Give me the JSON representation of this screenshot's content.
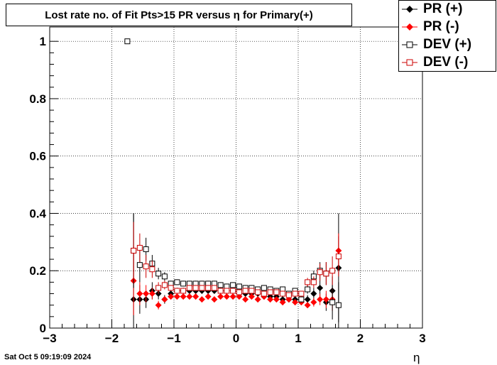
{
  "title": "Lost rate no. of Fit Pts>15 PR versus η for Primary(+)",
  "datestamp": "Sat Oct  5 09:19:09 2024",
  "chart_data": {
    "type": "scatter",
    "xlabel": "η",
    "ylabel": "",
    "xlim": [
      -3,
      3
    ],
    "ylim": [
      0,
      1.05
    ],
    "xticks": [
      "−3",
      "−2",
      "−1",
      "0",
      "1",
      "2",
      "3"
    ],
    "yticks": [
      "0",
      "0.2",
      "0.4",
      "0.6",
      "0.8",
      "1"
    ],
    "grid": true,
    "legend_position": "top-right",
    "series": [
      {
        "name": "PR (+)",
        "color": "#000000",
        "marker": "filled-diamond",
        "x": [
          -1.65,
          -1.55,
          -1.45,
          -1.35,
          -1.25,
          -1.15,
          -1.05,
          -0.95,
          -0.85,
          -0.75,
          -0.65,
          -0.55,
          -0.45,
          -0.35,
          -0.25,
          -0.15,
          -0.05,
          0.05,
          0.15,
          0.25,
          0.35,
          0.45,
          0.55,
          0.65,
          0.75,
          0.85,
          0.95,
          1.05,
          1.15,
          1.25,
          1.35,
          1.45,
          1.55,
          1.65
        ],
        "y": [
          0.1,
          0.1,
          0.1,
          0.13,
          0.12,
          0.1,
          0.12,
          0.13,
          0.13,
          0.13,
          0.13,
          0.13,
          0.13,
          0.13,
          0.13,
          0.13,
          0.13,
          0.12,
          0.12,
          0.12,
          0.12,
          0.11,
          0.11,
          0.11,
          0.1,
          0.1,
          0.1,
          0.1,
          0.1,
          0.12,
          0.14,
          0.09,
          0.13,
          0.21
        ],
        "err": [
          0.3,
          0.05,
          0.03,
          0.03,
          0.02,
          0.015,
          0.01,
          0.01,
          0.01,
          0.01,
          0.01,
          0.01,
          0.01,
          0.01,
          0.01,
          0.01,
          0.01,
          0.01,
          0.01,
          0.01,
          0.01,
          0.01,
          0.01,
          0.01,
          0.01,
          0.01,
          0.01,
          0.01,
          0.015,
          0.02,
          0.03,
          0.03,
          0.05,
          0.19
        ]
      },
      {
        "name": "PR (-)",
        "color": "#ff0000",
        "marker": "filled-diamond",
        "x": [
          -1.65,
          -1.55,
          -1.45,
          -1.35,
          -1.25,
          -1.15,
          -1.05,
          -0.95,
          -0.85,
          -0.75,
          -0.65,
          -0.55,
          -0.45,
          -0.35,
          -0.25,
          -0.15,
          -0.05,
          0.05,
          0.15,
          0.25,
          0.35,
          0.45,
          0.55,
          0.65,
          0.75,
          0.85,
          0.95,
          1.05,
          1.15,
          1.25,
          1.35,
          1.45,
          1.55,
          1.65
        ],
        "y": [
          0.165,
          0.12,
          0.12,
          0.12,
          0.08,
          0.1,
          0.11,
          0.11,
          0.11,
          0.11,
          0.11,
          0.1,
          0.11,
          0.1,
          0.11,
          0.11,
          0.11,
          0.11,
          0.1,
          0.11,
          0.1,
          0.11,
          0.1,
          0.1,
          0.09,
          0.1,
          0.09,
          0.09,
          0.08,
          0.09,
          0.1,
          0.1,
          0.1,
          0.27
        ],
        "err": [
          0.12,
          0.04,
          0.03,
          0.02,
          0.015,
          0.01,
          0.01,
          0.01,
          0.01,
          0.01,
          0.01,
          0.01,
          0.01,
          0.01,
          0.01,
          0.01,
          0.01,
          0.01,
          0.01,
          0.01,
          0.01,
          0.01,
          0.01,
          0.01,
          0.01,
          0.01,
          0.01,
          0.01,
          0.01,
          0.015,
          0.02,
          0.03,
          0.04,
          0.06
        ]
      },
      {
        "name": "DEV (+)",
        "color": "#000000",
        "marker": "open-square",
        "x": [
          -1.75,
          -1.65,
          -1.55,
          -1.45,
          -1.35,
          -1.25,
          -1.15,
          -1.05,
          -0.95,
          -0.85,
          -0.75,
          -0.65,
          -0.55,
          -0.45,
          -0.35,
          -0.25,
          -0.15,
          -0.05,
          0.05,
          0.15,
          0.25,
          0.35,
          0.45,
          0.55,
          0.65,
          0.75,
          0.85,
          0.95,
          1.05,
          1.15,
          1.25,
          1.35,
          1.45,
          1.55,
          1.65
        ],
        "y": [
          1.0,
          0.27,
          0.22,
          0.275,
          0.225,
          0.19,
          0.18,
          0.155,
          0.16,
          0.155,
          0.155,
          0.155,
          0.155,
          0.155,
          0.155,
          0.15,
          0.145,
          0.15,
          0.145,
          0.14,
          0.14,
          0.135,
          0.14,
          0.135,
          0.13,
          0.135,
          0.12,
          0.13,
          0.1,
          0.135,
          0.18,
          0.2,
          0.19,
          0.09,
          0.08
        ],
        "err": [
          0.0,
          0.13,
          0.06,
          0.04,
          0.03,
          0.02,
          0.015,
          0.01,
          0.01,
          0.01,
          0.01,
          0.01,
          0.01,
          0.01,
          0.01,
          0.01,
          0.01,
          0.01,
          0.01,
          0.01,
          0.01,
          0.01,
          0.01,
          0.01,
          0.01,
          0.01,
          0.01,
          0.01,
          0.01,
          0.015,
          0.02,
          0.03,
          0.04,
          0.06,
          0.08
        ]
      },
      {
        "name": "DEV (-)",
        "color": "#cc0000",
        "marker": "open-square",
        "x": [
          -1.65,
          -1.55,
          -1.45,
          -1.35,
          -1.25,
          -1.15,
          -1.05,
          -0.95,
          -0.85,
          -0.75,
          -0.65,
          -0.55,
          -0.45,
          -0.35,
          -0.25,
          -0.15,
          -0.05,
          0.05,
          0.15,
          0.25,
          0.35,
          0.45,
          0.55,
          0.65,
          0.75,
          0.85,
          0.95,
          1.05,
          1.15,
          1.25,
          1.35,
          1.45,
          1.55,
          1.65
        ],
        "y": [
          0.27,
          0.28,
          0.215,
          0.205,
          0.14,
          0.15,
          0.14,
          0.13,
          0.13,
          0.14,
          0.14,
          0.14,
          0.14,
          0.14,
          0.13,
          0.13,
          0.13,
          0.125,
          0.13,
          0.13,
          0.125,
          0.12,
          0.125,
          0.125,
          0.12,
          0.115,
          0.12,
          0.12,
          0.16,
          0.16,
          0.195,
          0.19,
          0.2,
          0.25
        ],
        "err": [
          0.1,
          0.05,
          0.04,
          0.03,
          0.02,
          0.015,
          0.01,
          0.01,
          0.01,
          0.01,
          0.01,
          0.01,
          0.01,
          0.01,
          0.01,
          0.01,
          0.01,
          0.01,
          0.01,
          0.01,
          0.01,
          0.01,
          0.01,
          0.01,
          0.01,
          0.01,
          0.01,
          0.01,
          0.015,
          0.02,
          0.03,
          0.04,
          0.05,
          0.07
        ]
      }
    ]
  }
}
